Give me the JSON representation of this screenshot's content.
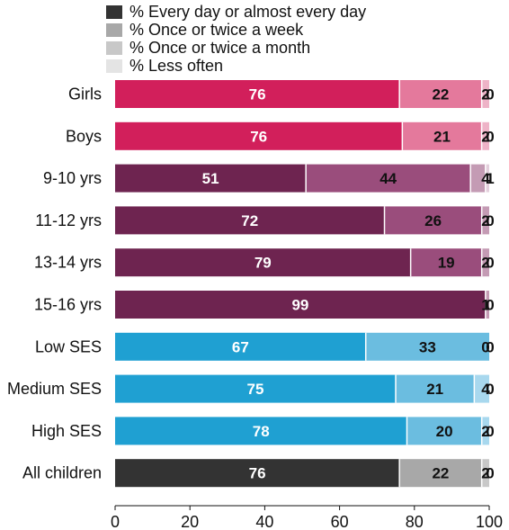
{
  "chart_data": {
    "type": "bar",
    "orientation": "horizontal",
    "stacked": true,
    "categories": [
      "Girls",
      "Boys",
      "9-10 yrs",
      "11-12 yrs",
      "13-14 yrs",
      "15-16 yrs",
      "Low  SES",
      "Medium SES",
      "High SES",
      "All children"
    ],
    "series": [
      {
        "name": "% Every day or almost every day",
        "values": [
          76,
          76,
          51,
          72,
          79,
          99,
          67,
          75,
          78,
          76
        ]
      },
      {
        "name": "% Once or twice a week",
        "values": [
          22,
          21,
          44,
          26,
          19,
          0,
          33,
          21,
          20,
          22
        ]
      },
      {
        "name": "% Once or twice a month",
        "values": [
          2,
          2,
          4,
          2,
          2,
          1,
          0,
          4,
          2,
          2
        ]
      },
      {
        "name": "% Less often",
        "values": [
          0,
          0,
          1,
          0,
          0,
          0,
          0,
          0,
          0,
          0
        ]
      }
    ],
    "x_ticks": [
      "0",
      "20",
      "40",
      "60",
      "80",
      "100"
    ],
    "xlim": [
      0,
      100
    ],
    "legend_position": "top",
    "grid": false,
    "title": "",
    "xlabel": "",
    "ylabel": ""
  },
  "legend_colors": [
    "#333333",
    "#a8a8a8",
    "#c8c8c8",
    "#e4e4e4"
  ],
  "category_colors": [
    [
      "#d21f5b",
      "#e4799c",
      "#eeb3c7",
      "#f6dce5"
    ],
    [
      "#d21f5b",
      "#e4799c",
      "#eeb3c7",
      "#f6dce5"
    ],
    [
      "#6e2450",
      "#9a4d7c",
      "#c49bb4",
      "#e3cfdc"
    ],
    [
      "#6e2450",
      "#9a4d7c",
      "#c49bb4",
      "#e3cfdc"
    ],
    [
      "#6e2450",
      "#9a4d7c",
      "#c49bb4",
      "#e3cfdc"
    ],
    [
      "#6e2450",
      "#9a4d7c",
      "#c49bb4",
      "#e3cfdc"
    ],
    [
      "#1fa0d2",
      "#6bbde0",
      "#a8d8ee",
      "#d6edf7"
    ],
    [
      "#1fa0d2",
      "#6bbde0",
      "#a8d8ee",
      "#d6edf7"
    ],
    [
      "#1fa0d2",
      "#6bbde0",
      "#a8d8ee",
      "#d6edf7"
    ],
    [
      "#333333",
      "#a8a8a8",
      "#c8c8c8",
      "#e4e4e4"
    ]
  ],
  "value_label_colors": [
    "#ffffff",
    "#111111",
    "#111111",
    "#111111"
  ]
}
